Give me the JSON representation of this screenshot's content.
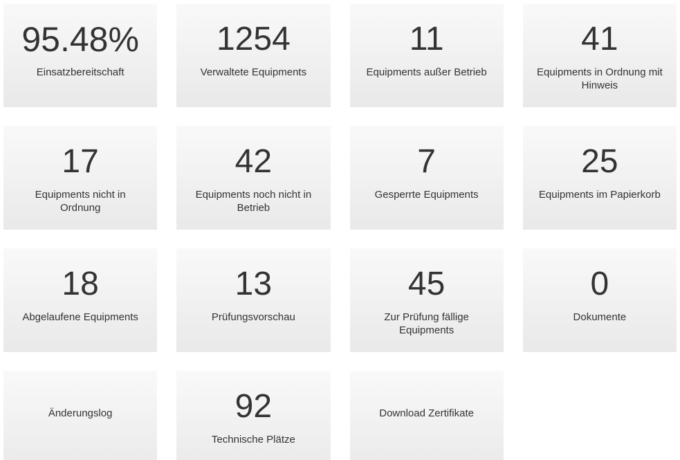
{
  "page": {
    "background_color": "#ffffff",
    "tile_gradient_top": "#f9f9f9",
    "tile_gradient_bottom": "#e9e9e9",
    "text_color": "#333333"
  },
  "tiles": [
    {
      "value": "95.48%",
      "label": "Einsatzbereitschaft"
    },
    {
      "value": "1254",
      "label": "Verwaltete Equipments"
    },
    {
      "value": "11",
      "label": "Equipments außer Betrieb"
    },
    {
      "value": "41",
      "label": "Equipments in Ordnung mit Hinweis"
    },
    {
      "value": "17",
      "label": "Equipments nicht in Ordnung"
    },
    {
      "value": "42",
      "label": "Equipments noch nicht in Betrieb"
    },
    {
      "value": "7",
      "label": "Gesperrte Equipments"
    },
    {
      "value": "25",
      "label": "Equipments im Papierkorb"
    },
    {
      "value": "18",
      "label": "Abgelaufene Equipments"
    },
    {
      "value": "13",
      "label": "Prüfungsvorschau"
    },
    {
      "value": "45",
      "label": "Zur Prüfung fällige Equipments"
    },
    {
      "value": "0",
      "label": "Dokumente"
    },
    {
      "value": "",
      "label": "Änderungslog"
    },
    {
      "value": "92",
      "label": "Technische Plätze"
    },
    {
      "value": "",
      "label": "Download Zertifikate"
    }
  ]
}
